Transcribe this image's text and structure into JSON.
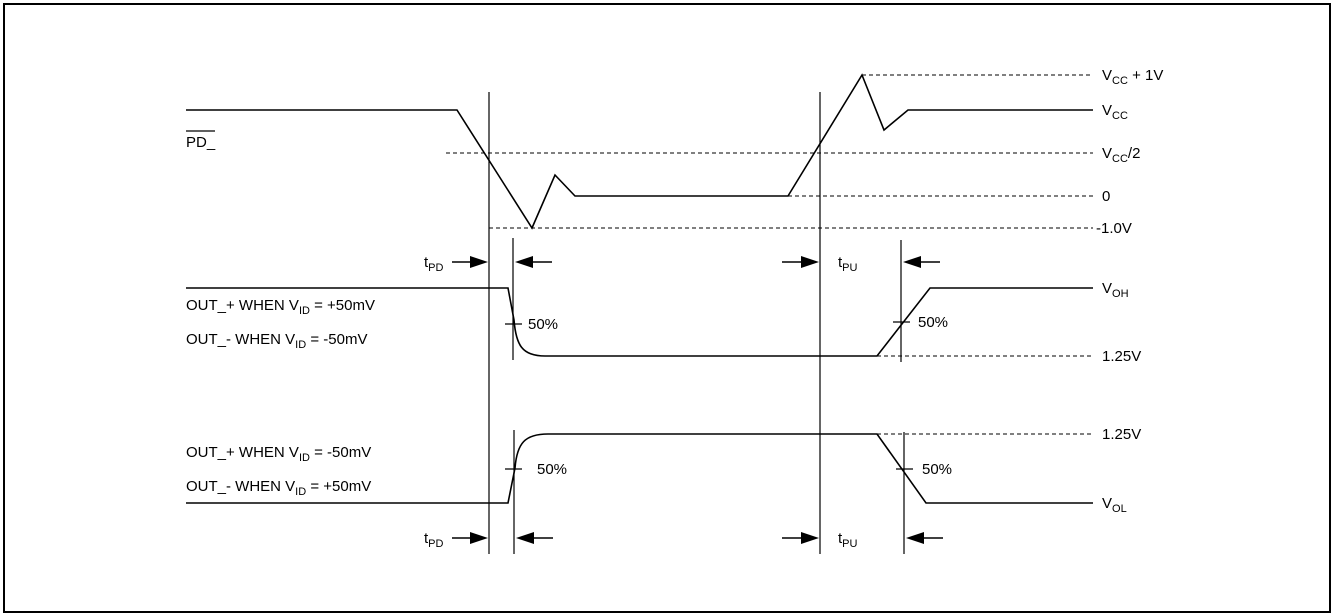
{
  "signals": {
    "pd": "PD_",
    "out1_line1": {
      "main": "OUT_+ WHEN V",
      "sub": "ID",
      "rest": " = +50mV"
    },
    "out1_line2": {
      "main": "OUT_- WHEN V",
      "sub": "ID",
      "rest": " = -50mV"
    },
    "out2_line1": {
      "main": "OUT_+ WHEN V",
      "sub": "ID",
      "rest": " = -50mV"
    },
    "out2_line2": {
      "main": "OUT_- WHEN V",
      "sub": "ID",
      "rest": " = +50mV"
    }
  },
  "levels": {
    "vcc_plus_1v": {
      "main": "V",
      "sub": "CC",
      "rest": " + 1V"
    },
    "vcc": {
      "main": "V",
      "sub": "CC",
      "rest": ""
    },
    "vcc_half": {
      "main": "V",
      "sub": "CC",
      "rest": "/2"
    },
    "zero": "0",
    "minus_1v": "-1.0V",
    "voh": {
      "main": "V",
      "sub": "OH",
      "rest": ""
    },
    "v125_a": "1.25V",
    "v125_b": "1.25V",
    "vol": {
      "main": "V",
      "sub": "OL",
      "rest": ""
    }
  },
  "timing": {
    "tpd_top": {
      "main": "t",
      "sub": "PD"
    },
    "tpu_top": {
      "main": "t",
      "sub": "PU"
    },
    "tpd_bottom": {
      "main": "t",
      "sub": "PD"
    },
    "tpu_bottom": {
      "main": "t",
      "sub": "PU"
    }
  },
  "percent": {
    "p1": "50%",
    "p2": "50%",
    "p3": "50%",
    "p4": "50%"
  }
}
